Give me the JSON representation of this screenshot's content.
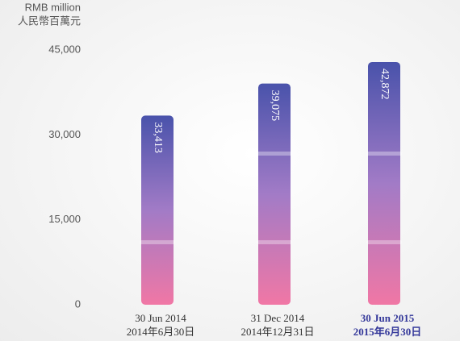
{
  "chart_data": {
    "type": "bar",
    "y_label": [
      "RMB million",
      "人民幣百萬元"
    ],
    "categories": [
      [
        "30 Jun 2014",
        "2014年6月30日"
      ],
      [
        "31 Dec 2014",
        "2014年12月31日"
      ],
      [
        "30 Jun 2015",
        "2015年6月30日"
      ]
    ],
    "values": [
      33413,
      39075,
      42872
    ],
    "value_labels": [
      "33,413",
      "39,075",
      "42,872"
    ],
    "color": [
      "#3a44a4",
      "#9a70c2",
      "#f06c9e"
    ],
    "highlight": {
      "index": 2,
      "color": "#34389a"
    },
    "ylim": [
      0,
      45000
    ],
    "yticks": [
      0,
      {
        "value": 15000,
        "label": "15,000"
      },
      {
        "value": 30000,
        "label": "30,000"
      },
      {
        "value": 45000,
        "label": "45,000"
      }
    ],
    "grid": false
  }
}
